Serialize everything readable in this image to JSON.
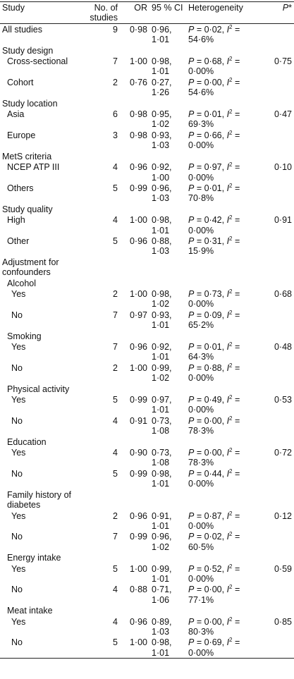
{
  "table": {
    "header": [
      "Study",
      "No. of studies",
      "OR",
      "95 % CI",
      "Heterogeneity",
      [
        "P",
        "*"
      ]
    ],
    "rows": [
      {
        "level": 0,
        "study": "All studies",
        "n": "9",
        "or": "0·98",
        "ci": "0·96, 1·01",
        "het": [
          "P",
          " = 0·02, ",
          "I",
          "2",
          " = 54·6%"
        ]
      },
      {
        "level": 0,
        "study": "Study design"
      },
      {
        "level": 1,
        "study": "Cross-sectional",
        "n": "7",
        "or": "1·00",
        "ci": "0·98, 1·01",
        "het": [
          "P",
          " = 0·68, ",
          "I",
          "2",
          " = 0·00%"
        ],
        "p": "0·75"
      },
      {
        "level": 1,
        "study": "Cohort",
        "n": "2",
        "or": "0·76",
        "ci": "0·27, 1·26",
        "het": [
          "P",
          " = 0·00, ",
          "I",
          "2",
          " = 54·6%"
        ]
      },
      {
        "level": 0,
        "study": "Study location"
      },
      {
        "level": 1,
        "study": "Asia",
        "n": "6",
        "or": "0·98",
        "ci": "0·95, 1·02",
        "het": [
          "P",
          " = 0·01, ",
          "I",
          "2",
          " = 69·3%"
        ],
        "p": "0·47"
      },
      {
        "level": 1,
        "study": "Europe",
        "n": "3",
        "or": "0·98",
        "ci": "0·93, 1·03",
        "het": [
          "P",
          " = 0·66, ",
          "I",
          "2",
          " = 0·00%"
        ]
      },
      {
        "level": 0,
        "study": "MetS criteria"
      },
      {
        "level": 1,
        "study": "NCEP ATP III",
        "n": "4",
        "or": "0·96",
        "ci": "0·92, 1·00",
        "het": [
          "P",
          " = 0·97, ",
          "I",
          "2",
          " = 0·00%"
        ],
        "p": "0·10"
      },
      {
        "level": 1,
        "study": "Others",
        "n": "5",
        "or": "0·99",
        "ci": "0·96, 1·03",
        "het": [
          "P",
          " = 0·01, ",
          "I",
          "2",
          " = 70·8%"
        ]
      },
      {
        "level": 0,
        "study": "Study quality"
      },
      {
        "level": 1,
        "study": "High",
        "n": "4",
        "or": "1·00",
        "ci": "0·98, 1·01",
        "het": [
          "P",
          " = 0·42, ",
          "I",
          "2",
          " = 0·00%"
        ],
        "p": "0·91"
      },
      {
        "level": 1,
        "study": "Other",
        "n": "5",
        "or": "0·96",
        "ci": "0·88, 1·03",
        "het": [
          "P",
          " = 0·31, ",
          "I",
          "2",
          " = 15·9%"
        ]
      },
      {
        "level": 0,
        "study": "Adjustment for confounders"
      },
      {
        "level": 1,
        "study": "Alcohol"
      },
      {
        "level": 2,
        "study": "Yes",
        "n": "2",
        "or": "1·00",
        "ci": "0·98, 1·02",
        "het": [
          "P",
          " = 0·73, ",
          "I",
          "2",
          " = 0·00%"
        ],
        "p": "0·68"
      },
      {
        "level": 2,
        "study": "No",
        "n": "7",
        "or": "0·97",
        "ci": "0·93, 1·01",
        "het": [
          "P",
          " = 0·09, ",
          "I",
          "2",
          " = 65·2%"
        ]
      },
      {
        "level": 1,
        "study": "Smoking"
      },
      {
        "level": 2,
        "study": "Yes",
        "n": "7",
        "or": "0·96",
        "ci": "0·92, 1·01",
        "het": [
          "P",
          " = 0·01, ",
          "I",
          "2",
          " = 64·3%"
        ],
        "p": "0·48"
      },
      {
        "level": 2,
        "study": "No",
        "n": "2",
        "or": "1·00",
        "ci": "0·99, 1·02",
        "het": [
          "P",
          " = 0·88, ",
          "I",
          "2",
          " = 0·00%"
        ]
      },
      {
        "level": 1,
        "study": "Physical activity"
      },
      {
        "level": 2,
        "study": "Yes",
        "n": "5",
        "or": "0·99",
        "ci": "0·97, 1·01",
        "het": [
          "P",
          " = 0·49, ",
          "I",
          "2",
          " = 0·00%"
        ],
        "p": "0·53"
      },
      {
        "level": 2,
        "study": "No",
        "n": "4",
        "or": "0·91",
        "ci": "0·73, 1·08",
        "het": [
          "P",
          " = 0·00, ",
          "I",
          "2",
          " = 78·3%"
        ]
      },
      {
        "level": 1,
        "study": "Education"
      },
      {
        "level": 2,
        "study": "Yes",
        "n": "4",
        "or": "0·90",
        "ci": "0·73, 1·08",
        "het": [
          "P",
          " = 0·00, ",
          "I",
          "2",
          " = 78·3%"
        ],
        "p": "0·72"
      },
      {
        "level": 2,
        "study": "No",
        "n": "5",
        "or": "0·99",
        "ci": "0·98, 1·01",
        "het": [
          "P",
          " = 0·44, ",
          "I",
          "2",
          " = 0·00%"
        ]
      },
      {
        "level": 1,
        "study": "Family history of diabetes"
      },
      {
        "level": 2,
        "study": "Yes",
        "n": "2",
        "or": "0·96",
        "ci": "0·91, 1·01",
        "het": [
          "P",
          " = 0·87, ",
          "I",
          "2",
          " = 0·00%"
        ],
        "p": "0·12"
      },
      {
        "level": 2,
        "study": "No",
        "n": "7",
        "or": "0·99",
        "ci": "0·96, 1·02",
        "het": [
          "P",
          " = 0·02, ",
          "I",
          "2",
          " = 60·5%"
        ]
      },
      {
        "level": 1,
        "study": "Energy intake"
      },
      {
        "level": 2,
        "study": "Yes",
        "n": "5",
        "or": "1·00",
        "ci": "0·99, 1·01",
        "het": [
          "P",
          " = 0·52, ",
          "I",
          "2",
          " = 0·00%"
        ],
        "p": "0·59"
      },
      {
        "level": 2,
        "study": "No",
        "n": "4",
        "or": "0·88",
        "ci": "0·71, 1·06",
        "het": [
          "P",
          " = 0·00, ",
          "I",
          "2",
          " = 77·1%"
        ]
      },
      {
        "level": 1,
        "study": "Meat intake"
      },
      {
        "level": 2,
        "study": "Yes",
        "n": "4",
        "or": "0·96",
        "ci": "0·89, 1·03",
        "het": [
          "P",
          " = 0·00, ",
          "I",
          "2",
          " = 80·3%"
        ],
        "p": "0·85"
      },
      {
        "level": 2,
        "study": "No",
        "n": "5",
        "or": "1·00",
        "ci": "0·98, 1·01",
        "het": [
          "P",
          " = 0·69, ",
          "I",
          "2",
          " = 0·00%"
        ]
      }
    ]
  }
}
